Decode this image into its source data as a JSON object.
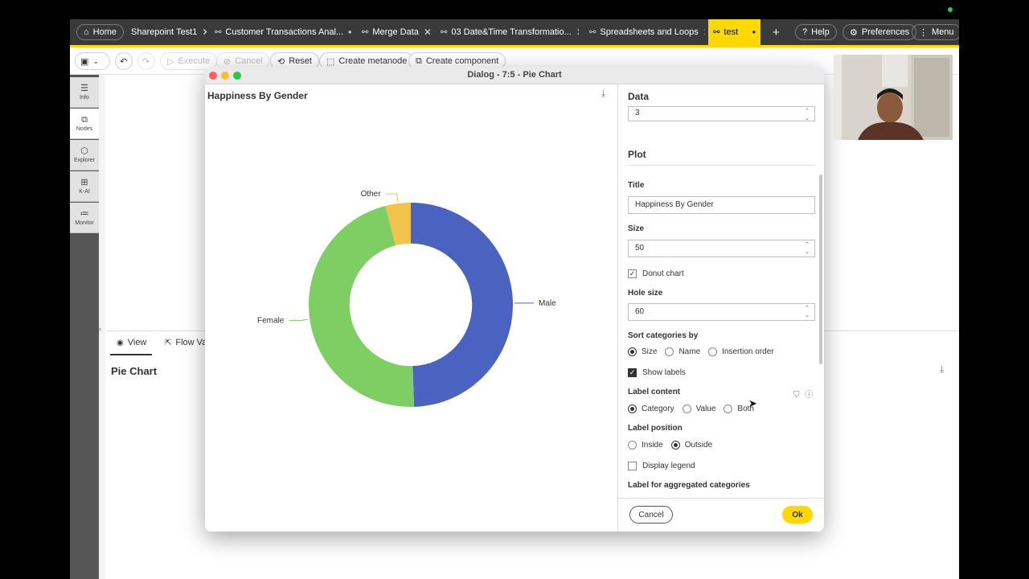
{
  "tabs": {
    "home": "Home",
    "items": [
      {
        "label": "Sharepoint Test1",
        "close": "✕"
      },
      {
        "label": "Customer Transactions Anal...",
        "close": "•"
      },
      {
        "label": "Merge Data",
        "close": "✕"
      },
      {
        "label": "03 Date&Time Transformatio...",
        "close": "✕"
      },
      {
        "label": "Spreadsheets and Loops",
        "close": "✕"
      },
      {
        "label": "test",
        "close": "•"
      }
    ],
    "add": "+",
    "help": "Help",
    "preferences": "Preferences",
    "menu": "Menu"
  },
  "toolbar": {
    "execute": "Execute",
    "cancel": "Cancel",
    "reset": "Reset",
    "create_metanode": "Create metanode",
    "create_component": "Create component"
  },
  "sidebar": {
    "items": [
      {
        "label": "Info",
        "icon": "info-icon"
      },
      {
        "label": "Nodes",
        "icon": "nodes-icon"
      },
      {
        "label": "Explorer",
        "icon": "explorer-icon"
      },
      {
        "label": "K-AI",
        "icon": "k-ai-icon"
      },
      {
        "label": "Monitor",
        "icon": "monitor-icon"
      }
    ]
  },
  "bottom_pane": {
    "view_tab": "View",
    "flow_tab": "Flow Va",
    "title": "Pie Chart"
  },
  "dialog": {
    "title": "Dialog - 7:5 - Pie Chart",
    "chart_title": "Happiness By Gender",
    "settings": {
      "data_header": "Data",
      "data_value": "3",
      "plot_header": "Plot",
      "title_label": "Title",
      "title_value": "Happiness By Gender",
      "size_label": "Size",
      "size_value": "50",
      "donut_label": "Donut chart",
      "hole_label": "Hole size",
      "hole_value": "60",
      "sort_label": "Sort categories by",
      "sort_options": [
        "Size",
        "Name",
        "Insertion order"
      ],
      "show_labels": "Show labels",
      "label_content": "Label content",
      "content_options": [
        "Category",
        "Value",
        "Both"
      ],
      "label_position": "Label position",
      "position_options": [
        "Inside",
        "Outside"
      ],
      "display_legend": "Display legend",
      "aggregated_label": "Label for aggregated categories"
    },
    "cancel": "Cancel",
    "ok": "Ok"
  },
  "colors": {
    "accent": "#ffd800",
    "male": "#4a62c0",
    "female": "#7ecf63",
    "other": "#f2c34b"
  },
  "chart_data": {
    "type": "pie",
    "donut": true,
    "title": "Happiness By Gender",
    "categories": [
      "Male",
      "Female",
      "Other"
    ],
    "values": [
      49.5,
      46.5,
      4.0
    ],
    "hole_size_percent": 60,
    "label_position": "outside",
    "legend": false
  }
}
